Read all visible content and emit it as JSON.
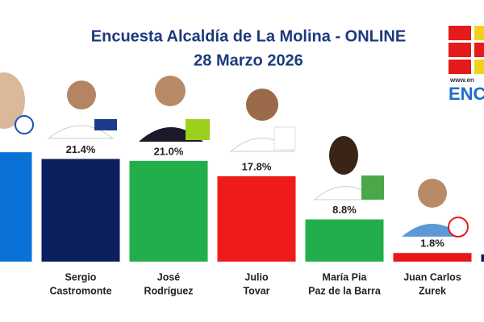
{
  "chart_data": {
    "type": "bar",
    "title": "Encuesta Alcaldía de La Molina - ONLINE",
    "subtitle": "28 Marzo 2026",
    "logo_url": "www.en",
    "logo_text": "ENC",
    "categories": [
      null,
      [
        "Sergio",
        "Castromonte"
      ],
      [
        "José",
        "Rodríguez"
      ],
      [
        "Julio",
        "Tovar"
      ],
      [
        "María Pia",
        "Paz de la Barra"
      ],
      [
        "Juan Carlos",
        "Zurek"
      ],
      null
    ],
    "values": [
      22.8,
      21.4,
      21.0,
      17.8,
      8.8,
      1.8,
      1.5
    ],
    "value_labels": [
      null,
      "21.4%",
      "21.0%",
      "17.8%",
      "8.8%",
      "1.8%",
      null
    ],
    "colors": [
      "#0a72d6",
      "#0c1f5e",
      "#22ae4a",
      "#ef1a1a",
      "#22ae4a",
      "#e81616",
      "#0c1f5e"
    ],
    "ylim": [
      0,
      25
    ]
  }
}
